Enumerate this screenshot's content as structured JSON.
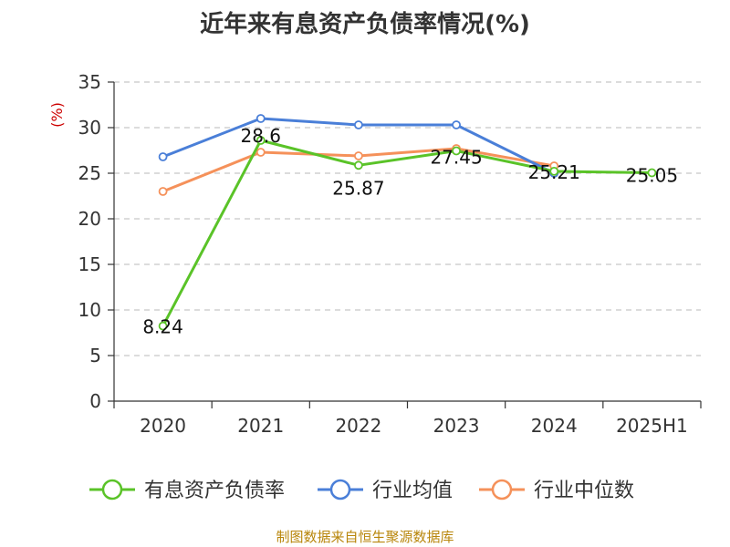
{
  "title": "近年来有息资产负债率情况(%)",
  "source": "制图数据来自恒生聚源数据库",
  "chart_data": {
    "type": "line",
    "title": "近年来有息资产负债率情况(%)",
    "ylabel": "(%)",
    "xlabel": "",
    "categories": [
      "2020",
      "2021",
      "2022",
      "2023",
      "2024",
      "2025H1"
    ],
    "ylim": [
      0,
      35
    ],
    "yticks": [
      0,
      5,
      10,
      15,
      20,
      25,
      30,
      35
    ],
    "grid": true,
    "legend_position": "bottom",
    "series": [
      {
        "name": "有息资产负债率",
        "color": "#5ac328",
        "values": [
          8.24,
          28.6,
          25.87,
          27.45,
          25.21,
          25.05
        ],
        "labels": [
          "8.24",
          "28.6",
          "25.87",
          "27.45",
          "25.21",
          "25.05"
        ]
      },
      {
        "name": "行业均值",
        "color": "#4a7fd8",
        "values": [
          26.8,
          31.0,
          30.3,
          30.3,
          25.0,
          null
        ]
      },
      {
        "name": "行业中位数",
        "color": "#f5915a",
        "values": [
          23.0,
          27.3,
          26.9,
          27.7,
          25.8,
          null
        ]
      }
    ]
  }
}
